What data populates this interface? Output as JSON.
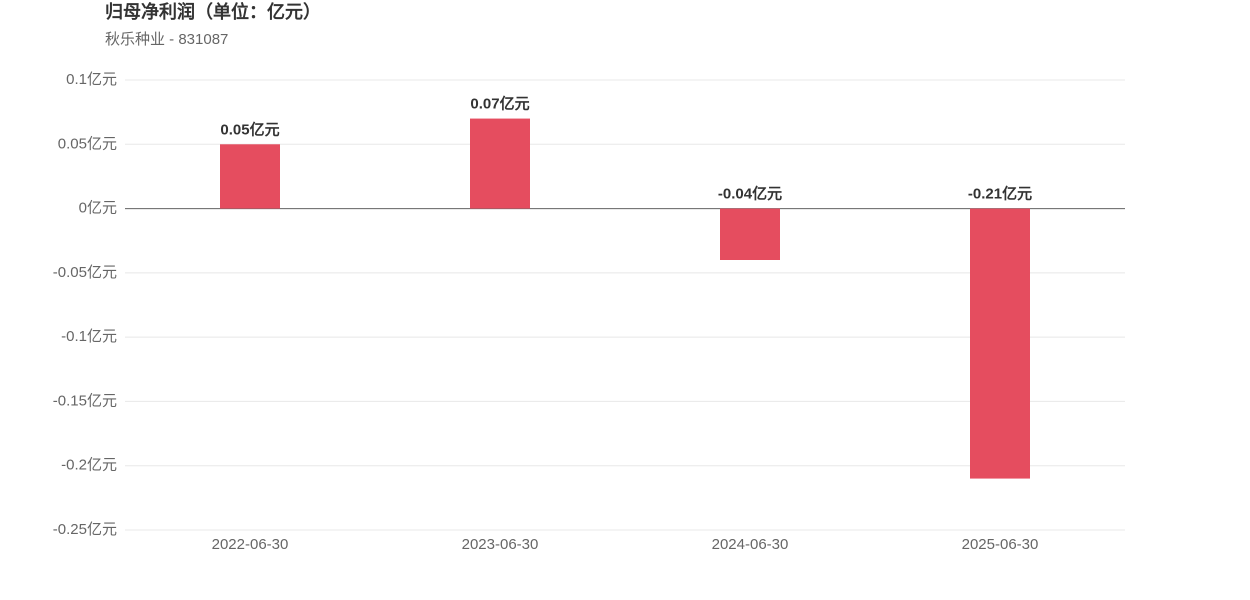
{
  "chart_data": {
    "type": "bar",
    "title": "归母净利润（单位：亿元）",
    "subtitle": "秋乐种业 - 831087",
    "categories": [
      "2022-06-30",
      "2023-06-30",
      "2024-06-30",
      "2025-06-30"
    ],
    "values": [
      0.05,
      0.07,
      -0.04,
      -0.21
    ],
    "value_labels": [
      "0.05亿元",
      "0.07亿元",
      "-0.04亿元",
      "-0.21亿元"
    ],
    "color": "#e54d5f",
    "ylim": [
      -0.25,
      0.1
    ],
    "yticks": [
      {
        "value": 0.1,
        "label": "0.1亿元"
      },
      {
        "value": 0.05,
        "label": "0.05亿元"
      },
      {
        "value": 0,
        "label": "0亿元"
      },
      {
        "value": -0.05,
        "label": "-0.05亿元"
      },
      {
        "value": -0.1,
        "label": "-0.1亿元"
      },
      {
        "value": -0.15,
        "label": "-0.15亿元"
      },
      {
        "value": -0.2,
        "label": "-0.2亿元"
      },
      {
        "value": -0.25,
        "label": "-0.25亿元"
      }
    ],
    "grid": true
  }
}
